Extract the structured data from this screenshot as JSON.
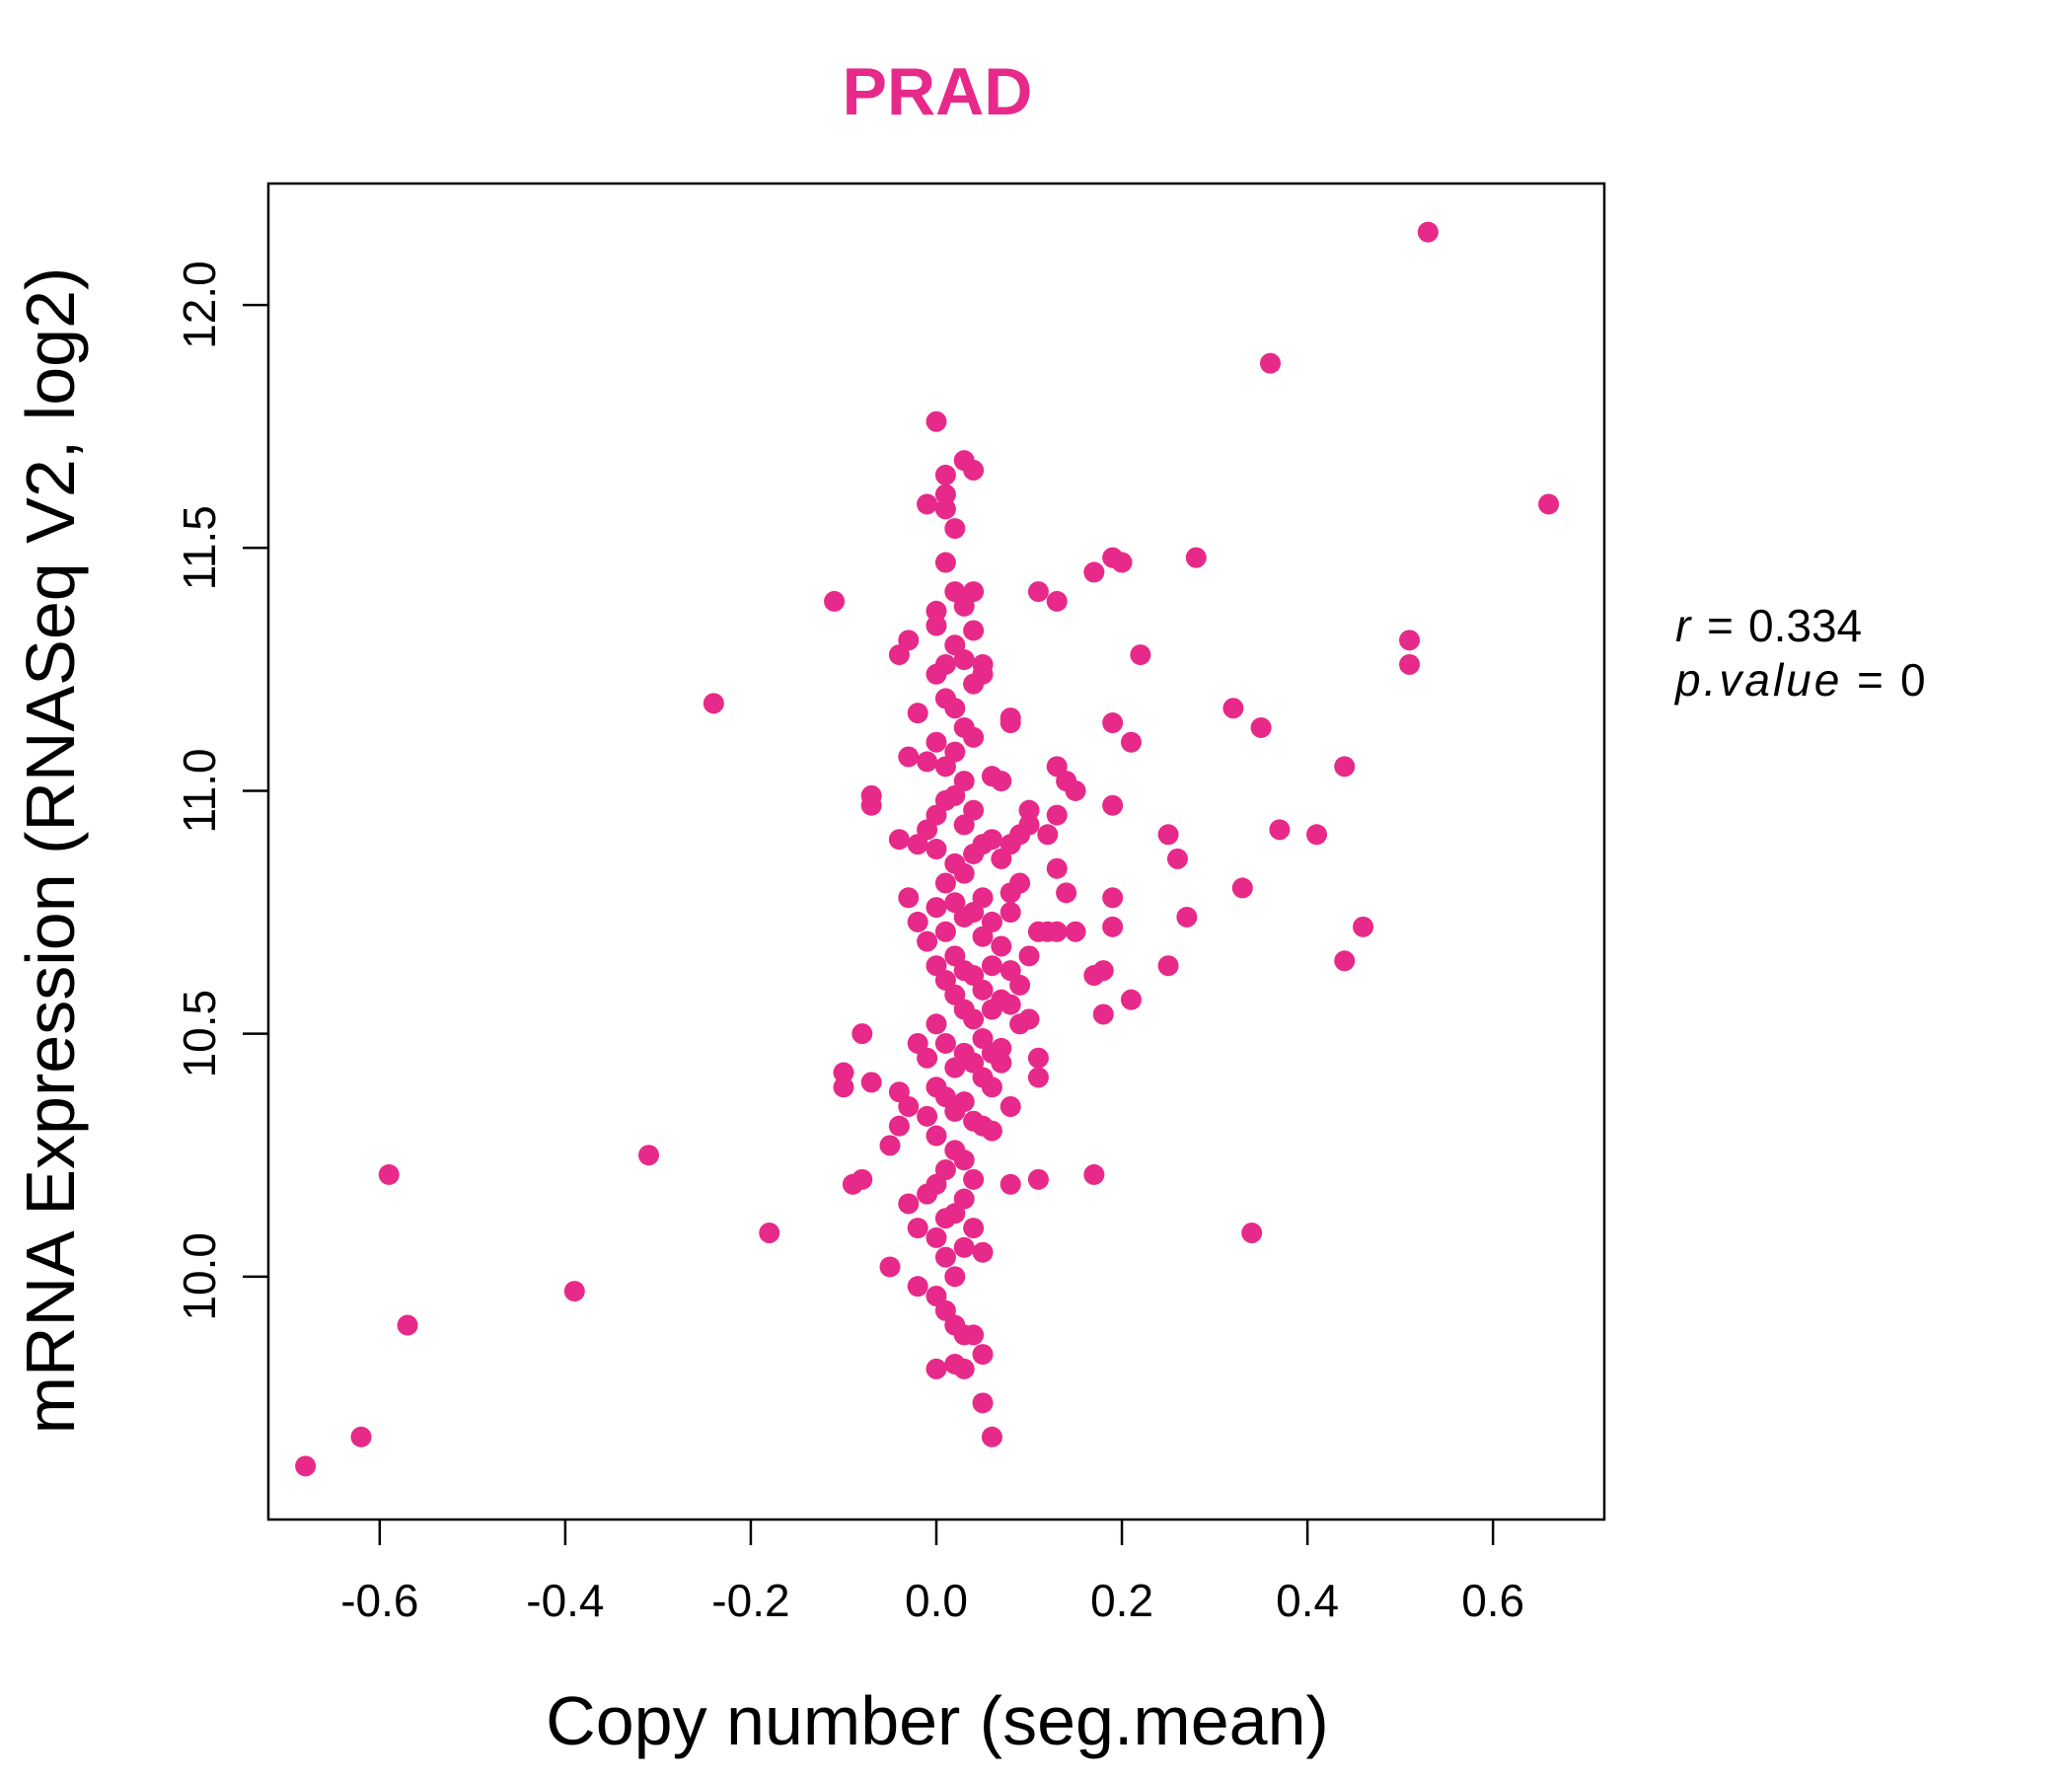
{
  "chart_data": {
    "type": "scatter",
    "title": "PRAD",
    "xlabel": "Copy number (seg.mean)",
    "ylabel": "mRNA Expression (RNASeq V2, log2)",
    "xlim": [
      -0.72,
      0.72
    ],
    "ylim": [
      9.5,
      12.25
    ],
    "x_ticks": [
      -0.6,
      -0.4,
      -0.2,
      0.0,
      0.2,
      0.4,
      0.6
    ],
    "x_tick_labels": [
      "-0.6",
      "-0.4",
      "-0.2",
      "0.0",
      "0.2",
      "0.4",
      "0.6"
    ],
    "y_ticks": [
      10.0,
      10.5,
      11.0,
      11.5,
      12.0
    ],
    "y_tick_labels": [
      "10.0",
      "10.5",
      "11.0",
      "11.5",
      "12.0"
    ],
    "stats": {
      "r_label": "r",
      "r_value": "0.334",
      "p_label": "p.value",
      "p_value": "0"
    },
    "colors": {
      "title": "#E7298A",
      "points": "#E7298A",
      "axis": "#000000"
    },
    "points": [
      [
        -0.68,
        9.61
      ],
      [
        -0.62,
        9.67
      ],
      [
        -0.57,
        9.9
      ],
      [
        -0.59,
        10.21
      ],
      [
        -0.39,
        9.97
      ],
      [
        -0.31,
        10.25
      ],
      [
        -0.24,
        11.18
      ],
      [
        -0.18,
        10.09
      ],
      [
        -0.11,
        11.39
      ],
      [
        -0.1,
        10.42
      ],
      [
        -0.1,
        10.39
      ],
      [
        -0.09,
        10.19
      ],
      [
        -0.08,
        10.2
      ],
      [
        -0.08,
        10.5
      ],
      [
        -0.07,
        10.4
      ],
      [
        -0.07,
        10.97
      ],
      [
        -0.07,
        10.99
      ],
      [
        -0.05,
        10.02
      ],
      [
        -0.05,
        10.27
      ],
      [
        -0.04,
        10.31
      ],
      [
        -0.04,
        10.38
      ],
      [
        -0.04,
        10.9
      ],
      [
        -0.04,
        11.28
      ],
      [
        -0.03,
        11.31
      ],
      [
        -0.03,
        11.07
      ],
      [
        -0.03,
        10.78
      ],
      [
        -0.03,
        10.15
      ],
      [
        -0.03,
        10.35
      ],
      [
        -0.02,
        10.48
      ],
      [
        -0.02,
        10.73
      ],
      [
        -0.02,
        10.89
      ],
      [
        -0.02,
        11.16
      ],
      [
        -0.02,
        10.1
      ],
      [
        -0.02,
        9.98
      ],
      [
        0.0,
        11.76
      ],
      [
        0.0,
        11.37
      ],
      [
        0.0,
        11.34
      ],
      [
        0.0,
        11.24
      ],
      [
        0.0,
        11.1
      ],
      [
        0.0,
        10.95
      ],
      [
        0.0,
        10.88
      ],
      [
        0.0,
        10.76
      ],
      [
        0.0,
        10.64
      ],
      [
        0.0,
        10.52
      ],
      [
        0.0,
        10.39
      ],
      [
        0.0,
        10.29
      ],
      [
        0.0,
        10.19
      ],
      [
        0.0,
        10.08
      ],
      [
        0.0,
        9.96
      ],
      [
        0.0,
        9.81
      ],
      [
        0.01,
        11.65
      ],
      [
        0.01,
        11.61
      ],
      [
        0.01,
        11.58
      ],
      [
        0.01,
        11.47
      ],
      [
        0.01,
        11.26
      ],
      [
        0.01,
        11.19
      ],
      [
        0.01,
        11.05
      ],
      [
        0.01,
        10.98
      ],
      [
        0.01,
        10.81
      ],
      [
        0.01,
        10.71
      ],
      [
        0.01,
        10.61
      ],
      [
        0.01,
        10.48
      ],
      [
        0.01,
        10.37
      ],
      [
        0.01,
        10.22
      ],
      [
        0.01,
        10.12
      ],
      [
        0.01,
        10.04
      ],
      [
        0.01,
        9.93
      ],
      [
        -0.01,
        11.59
      ],
      [
        -0.01,
        11.06
      ],
      [
        -0.01,
        10.92
      ],
      [
        -0.01,
        10.69
      ],
      [
        -0.01,
        10.45
      ],
      [
        -0.01,
        10.33
      ],
      [
        -0.01,
        10.17
      ],
      [
        0.02,
        11.54
      ],
      [
        0.02,
        11.41
      ],
      [
        0.02,
        11.3
      ],
      [
        0.02,
        11.17
      ],
      [
        0.02,
        11.08
      ],
      [
        0.02,
        10.99
      ],
      [
        0.02,
        10.85
      ],
      [
        0.02,
        10.77
      ],
      [
        0.02,
        10.66
      ],
      [
        0.02,
        10.58
      ],
      [
        0.02,
        10.43
      ],
      [
        0.02,
        10.34
      ],
      [
        0.02,
        10.26
      ],
      [
        0.02,
        10.13
      ],
      [
        0.02,
        10.0
      ],
      [
        0.02,
        9.9
      ],
      [
        0.02,
        9.82
      ],
      [
        0.03,
        11.68
      ],
      [
        0.03,
        11.38
      ],
      [
        0.03,
        11.27
      ],
      [
        0.03,
        11.13
      ],
      [
        0.03,
        11.02
      ],
      [
        0.03,
        10.93
      ],
      [
        0.03,
        10.83
      ],
      [
        0.03,
        10.74
      ],
      [
        0.03,
        10.63
      ],
      [
        0.03,
        10.55
      ],
      [
        0.03,
        10.46
      ],
      [
        0.03,
        10.36
      ],
      [
        0.03,
        10.24
      ],
      [
        0.03,
        10.16
      ],
      [
        0.03,
        10.06
      ],
      [
        0.03,
        9.88
      ],
      [
        0.03,
        9.81
      ],
      [
        0.04,
        11.66
      ],
      [
        0.04,
        11.41
      ],
      [
        0.04,
        11.33
      ],
      [
        0.04,
        11.22
      ],
      [
        0.04,
        11.11
      ],
      [
        0.04,
        10.96
      ],
      [
        0.04,
        10.87
      ],
      [
        0.04,
        10.75
      ],
      [
        0.04,
        10.62
      ],
      [
        0.04,
        10.53
      ],
      [
        0.04,
        10.44
      ],
      [
        0.04,
        10.32
      ],
      [
        0.04,
        10.2
      ],
      [
        0.04,
        10.1
      ],
      [
        0.04,
        9.88
      ],
      [
        0.05,
        11.26
      ],
      [
        0.05,
        11.24
      ],
      [
        0.05,
        10.89
      ],
      [
        0.05,
        10.78
      ],
      [
        0.05,
        10.7
      ],
      [
        0.05,
        10.59
      ],
      [
        0.05,
        10.49
      ],
      [
        0.05,
        10.41
      ],
      [
        0.05,
        10.31
      ],
      [
        0.05,
        10.05
      ],
      [
        0.05,
        9.84
      ],
      [
        0.05,
        9.74
      ],
      [
        0.06,
        11.03
      ],
      [
        0.06,
        10.9
      ],
      [
        0.06,
        10.73
      ],
      [
        0.06,
        10.64
      ],
      [
        0.06,
        10.55
      ],
      [
        0.06,
        10.46
      ],
      [
        0.06,
        10.39
      ],
      [
        0.06,
        10.3
      ],
      [
        0.06,
        9.67
      ],
      [
        0.07,
        11.02
      ],
      [
        0.07,
        10.86
      ],
      [
        0.07,
        10.68
      ],
      [
        0.07,
        10.57
      ],
      [
        0.07,
        10.47
      ],
      [
        0.07,
        10.44
      ],
      [
        0.08,
        11.15
      ],
      [
        0.08,
        11.14
      ],
      [
        0.08,
        10.89
      ],
      [
        0.08,
        10.79
      ],
      [
        0.08,
        10.75
      ],
      [
        0.08,
        10.63
      ],
      [
        0.08,
        10.56
      ],
      [
        0.08,
        10.35
      ],
      [
        0.08,
        10.19
      ],
      [
        0.09,
        10.91
      ],
      [
        0.09,
        10.81
      ],
      [
        0.09,
        10.6
      ],
      [
        0.09,
        10.52
      ],
      [
        0.1,
        10.96
      ],
      [
        0.1,
        10.93
      ],
      [
        0.1,
        10.53
      ],
      [
        0.1,
        10.66
      ],
      [
        0.11,
        11.41
      ],
      [
        0.11,
        10.71
      ],
      [
        0.11,
        10.45
      ],
      [
        0.11,
        10.41
      ],
      [
        0.11,
        10.2
      ],
      [
        0.12,
        10.91
      ],
      [
        0.12,
        10.71
      ],
      [
        0.13,
        11.39
      ],
      [
        0.13,
        11.05
      ],
      [
        0.13,
        10.95
      ],
      [
        0.13,
        10.84
      ],
      [
        0.13,
        10.71
      ],
      [
        0.14,
        11.02
      ],
      [
        0.14,
        10.79
      ],
      [
        0.15,
        11.0
      ],
      [
        0.15,
        10.71
      ],
      [
        0.17,
        11.45
      ],
      [
        0.17,
        10.62
      ],
      [
        0.17,
        10.21
      ],
      [
        0.18,
        10.63
      ],
      [
        0.18,
        10.54
      ],
      [
        0.19,
        11.48
      ],
      [
        0.19,
        11.14
      ],
      [
        0.19,
        10.97
      ],
      [
        0.19,
        10.78
      ],
      [
        0.19,
        10.72
      ],
      [
        0.2,
        11.47
      ],
      [
        0.21,
        11.1
      ],
      [
        0.21,
        10.57
      ],
      [
        0.22,
        11.28
      ],
      [
        0.25,
        10.91
      ],
      [
        0.25,
        10.64
      ],
      [
        0.26,
        10.86
      ],
      [
        0.27,
        10.74
      ],
      [
        0.28,
        11.48
      ],
      [
        0.32,
        11.17
      ],
      [
        0.33,
        10.8
      ],
      [
        0.34,
        10.09
      ],
      [
        0.35,
        11.13
      ],
      [
        0.36,
        11.88
      ],
      [
        0.37,
        10.92
      ],
      [
        0.41,
        10.91
      ],
      [
        0.44,
        10.65
      ],
      [
        0.44,
        11.05
      ],
      [
        0.46,
        10.72
      ],
      [
        0.51,
        11.31
      ],
      [
        0.51,
        11.26
      ],
      [
        0.53,
        12.15
      ],
      [
        0.66,
        11.59
      ]
    ]
  }
}
